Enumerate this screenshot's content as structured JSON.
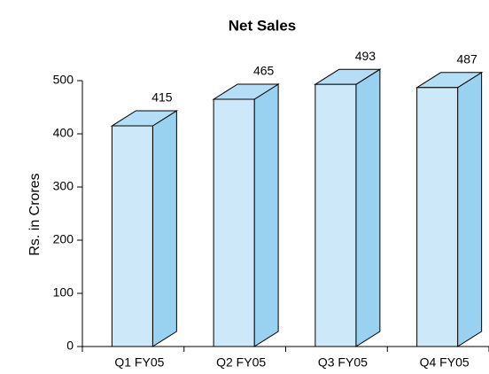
{
  "chart_data": {
    "type": "bar3d",
    "title": "Net Sales",
    "y_label": "Rs. in Crores",
    "categories": [
      "Q1 FY05",
      "Q2 FY05",
      "Q3 FY05",
      "Q4 FY05"
    ],
    "values": [
      415,
      465,
      493,
      487
    ],
    "color": "#cde9f9",
    "ylim": [
      0,
      500
    ],
    "yticks": [
      0,
      100,
      200,
      300,
      400,
      500
    ]
  }
}
